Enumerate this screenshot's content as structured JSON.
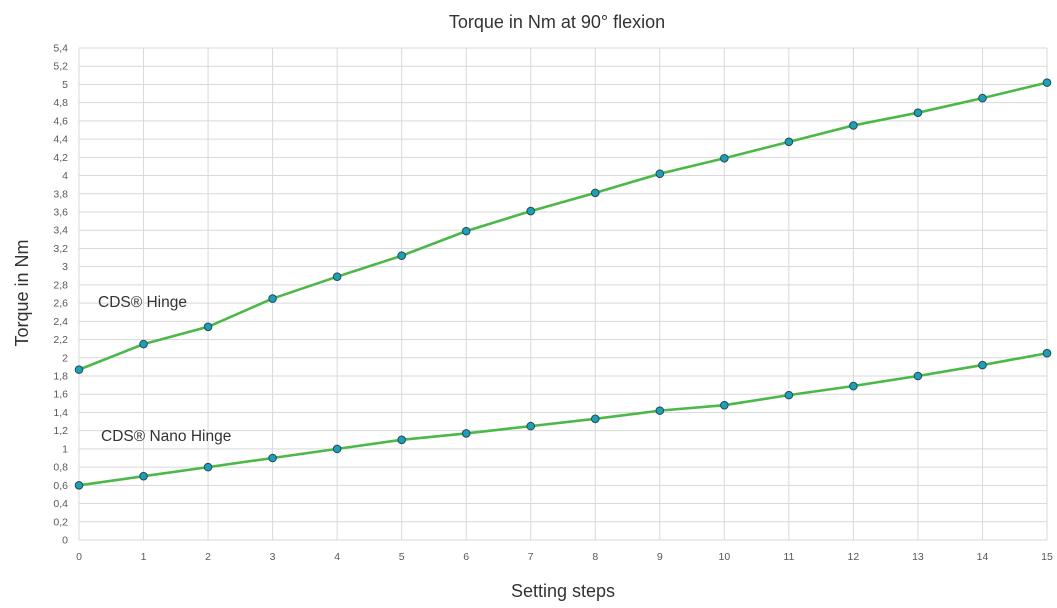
{
  "chart_data": {
    "type": "line",
    "title": "Torque in Nm at 90° flexion",
    "xlabel": "Setting steps",
    "ylabel": "Torque in Nm",
    "xlim": [
      0,
      15
    ],
    "ylim": [
      0,
      5.4
    ],
    "x": [
      0,
      1,
      2,
      3,
      4,
      5,
      6,
      7,
      8,
      9,
      10,
      11,
      12,
      13,
      14,
      15
    ],
    "x_tick_labels": [
      "0",
      "1",
      "2",
      "3",
      "4",
      "5",
      "6",
      "7",
      "8",
      "9",
      "10",
      "11",
      "12",
      "13",
      "14",
      "15"
    ],
    "y_ticks": [
      0,
      0.2,
      0.4,
      0.6,
      0.8,
      1,
      1.2,
      1.4,
      1.6,
      1.8,
      2,
      2.2,
      2.4,
      2.6,
      2.8,
      3,
      3.2,
      3.4,
      3.6,
      3.8,
      4,
      4.2,
      4.4,
      4.6,
      4.8,
      5,
      5.2,
      5.4
    ],
    "y_tick_labels": [
      "0",
      "0,2",
      "0,4",
      "0,6",
      "0,8",
      "1",
      "1,2",
      "1,4",
      "1,6",
      "1,8",
      "2",
      "2,2",
      "2,4",
      "2,6",
      "2,8",
      "3",
      "3,2",
      "3,4",
      "3,6",
      "3,8",
      "4",
      "4,2",
      "4,4",
      "4,6",
      "4,8",
      "5",
      "5,2",
      "5,4"
    ],
    "grid": true,
    "series": [
      {
        "name": "CDS® Hinge",
        "values": [
          1.87,
          2.15,
          2.34,
          2.65,
          2.89,
          3.12,
          3.39,
          3.61,
          3.81,
          4.02,
          4.19,
          4.37,
          4.55,
          4.69,
          4.85,
          5.02
        ]
      },
      {
        "name": "CDS® Nano Hinge",
        "values": [
          0.6,
          0.7,
          0.8,
          0.9,
          1.0,
          1.1,
          1.17,
          1.25,
          1.33,
          1.42,
          1.48,
          1.59,
          1.69,
          1.8,
          1.92,
          2.05
        ]
      }
    ],
    "colors": {
      "line": "#4cb848",
      "marker_fill": "#1e9eb7",
      "marker_stroke": "#234b50",
      "grid": "#d9d9d9",
      "tick_text": "#595959",
      "label_text": "#333333"
    }
  }
}
